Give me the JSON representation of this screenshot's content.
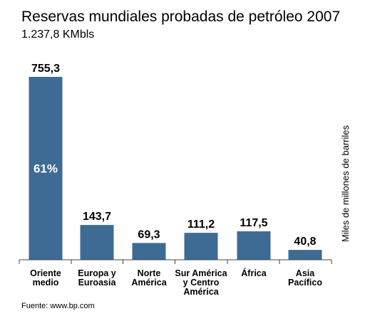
{
  "chart_data": {
    "type": "bar",
    "title": "Reservas mundiales probadas de petróleo 2007",
    "subtitle": "1.237,8 KMbls",
    "ylabel": "Miles de millones de barriles",
    "categories": [
      [
        "Oriente",
        "medio"
      ],
      [
        "Europa y",
        "Euroasia"
      ],
      [
        "Norte",
        "América"
      ],
      [
        "Sur América",
        "y Centro",
        "América"
      ],
      [
        "África"
      ],
      [
        "Asia",
        "Pacífico"
      ]
    ],
    "values": [
      755.3,
      143.7,
      69.3,
      111.2,
      117.5,
      40.8
    ],
    "value_labels": [
      "755,3",
      "143,7",
      "69,3",
      "111,2",
      "117,5",
      "40,8"
    ],
    "annotations": [
      {
        "category_index": 0,
        "text": "61%"
      }
    ],
    "ylim": [
      0,
      755.3
    ],
    "grid": false,
    "bar_color": "#3e6b94",
    "source": "Fuente: www.bp.com"
  }
}
